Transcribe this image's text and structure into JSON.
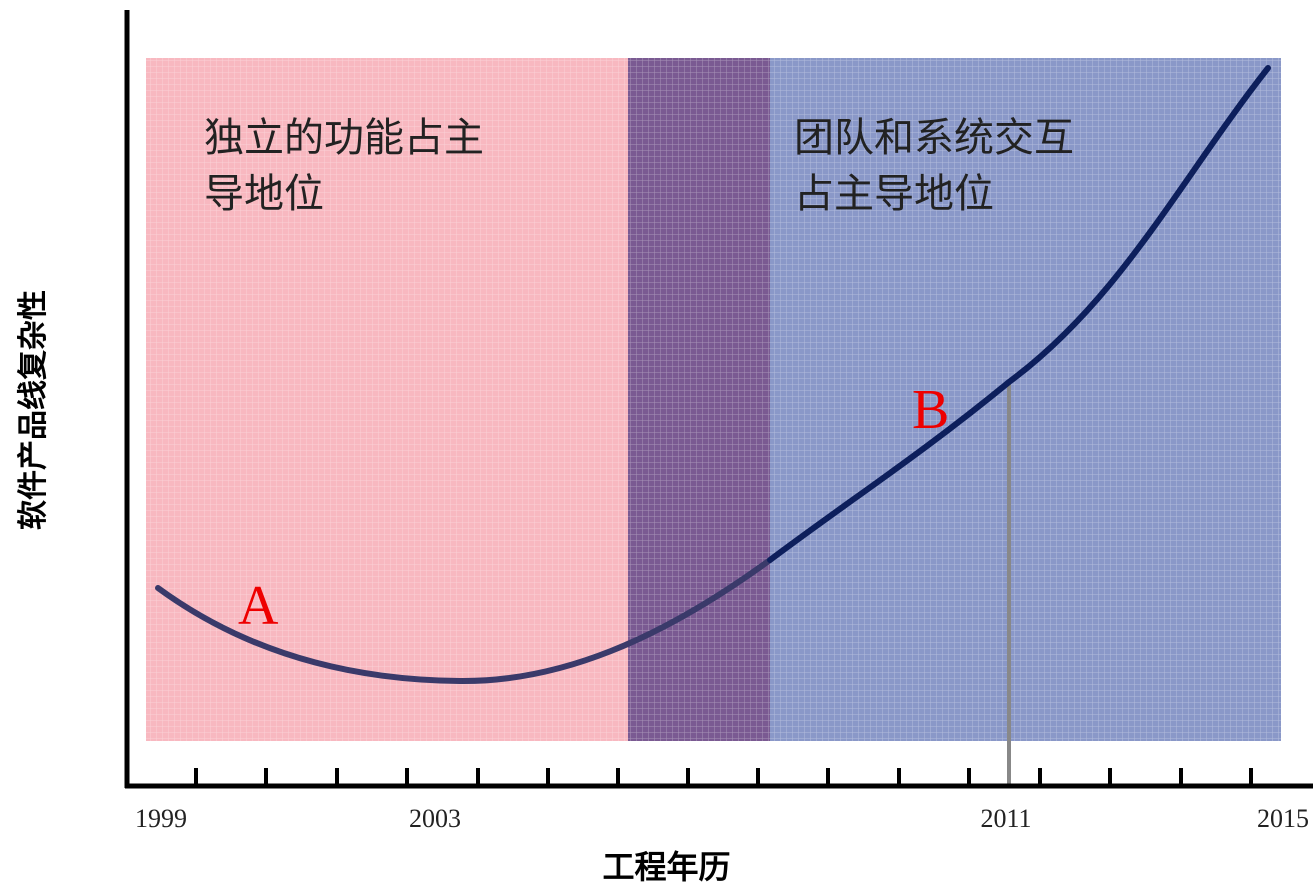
{
  "diagram": {
    "y_axis_label": "软件产品线复杂性",
    "x_axis_label": "工程年历",
    "regions": [
      {
        "text": "独立的功能占主\n导地位",
        "color": "#f8b8c0"
      },
      {
        "text": "团队和系统交互\n占主导地位",
        "color": "#8a98c8"
      }
    ],
    "overlap_color": "#7a5a92",
    "curve_color": "#0d1f5c",
    "point_labels": [
      "A",
      "B"
    ],
    "x_ticks": [
      "1999",
      "2003",
      "2011",
      "2015"
    ]
  }
}
